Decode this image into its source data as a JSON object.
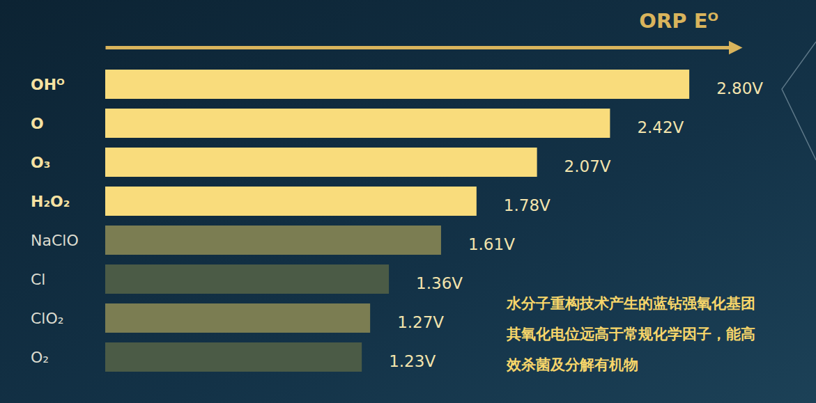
{
  "chart_data": {
    "type": "bar",
    "orientation": "horizontal",
    "title": "ORP Eᴼ",
    "categories": [
      "OHᴼ",
      "O",
      "O₃",
      "H₂O₂",
      "NaClO",
      "Cl",
      "ClO₂",
      "O₂"
    ],
    "values": [
      2.8,
      2.42,
      2.07,
      1.78,
      1.61,
      1.36,
      1.27,
      1.23
    ],
    "value_labels": [
      "2.80V",
      "2.42V",
      "2.07V",
      "1.78V",
      "1.61V",
      "1.36V",
      "1.27V",
      "1.23V"
    ],
    "colors": [
      "#f9dc7c",
      "#f9dc7c",
      "#f9dc7c",
      "#f9dc7c",
      "#7b7d52",
      "#4b5b46",
      "#7b7d52",
      "#4b5b46"
    ],
    "xlim": [
      0,
      3.0
    ],
    "xticks": [],
    "tick_labels": "y",
    "grid": false,
    "data_labels": true,
    "annotations": [
      "水分子重构技术产生的蓝钻强氧化基团",
      "其氧化电位远高于常规化学因子，能高",
      "效杀菌及分解有机物"
    ]
  }
}
